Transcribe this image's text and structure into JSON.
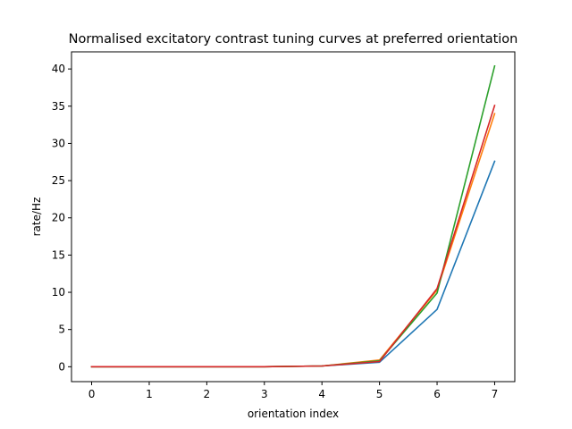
{
  "chart_data": {
    "type": "line",
    "title": "Normalised excitatory contrast tuning curves at preferred orientation",
    "xlabel": "orientation index",
    "ylabel": "rate/Hz",
    "xlim": [
      -0.35,
      7.35
    ],
    "ylim": [
      -2.0,
      42.3
    ],
    "xticks": [
      0,
      1,
      2,
      3,
      4,
      5,
      6,
      7
    ],
    "yticks": [
      0,
      5,
      10,
      15,
      20,
      25,
      30,
      35,
      40
    ],
    "grid": false,
    "legend": "none",
    "x": [
      0,
      1,
      2,
      3,
      4,
      5,
      6,
      7
    ],
    "series": [
      {
        "color": "#1f77b4",
        "values": [
          0.0,
          0.0,
          0.0,
          0.0,
          0.1,
          0.6,
          7.7,
          27.6
        ]
      },
      {
        "color": "#ff7f0e",
        "values": [
          0.0,
          0.0,
          0.0,
          0.0,
          0.1,
          0.9,
          10.3,
          34.0
        ]
      },
      {
        "color": "#2ca02c",
        "values": [
          0.0,
          0.0,
          0.0,
          0.0,
          0.1,
          0.8,
          9.9,
          40.4
        ]
      },
      {
        "color": "#d62728",
        "values": [
          0.0,
          0.0,
          0.0,
          0.0,
          0.1,
          0.7,
          10.5,
          35.1
        ]
      }
    ]
  }
}
